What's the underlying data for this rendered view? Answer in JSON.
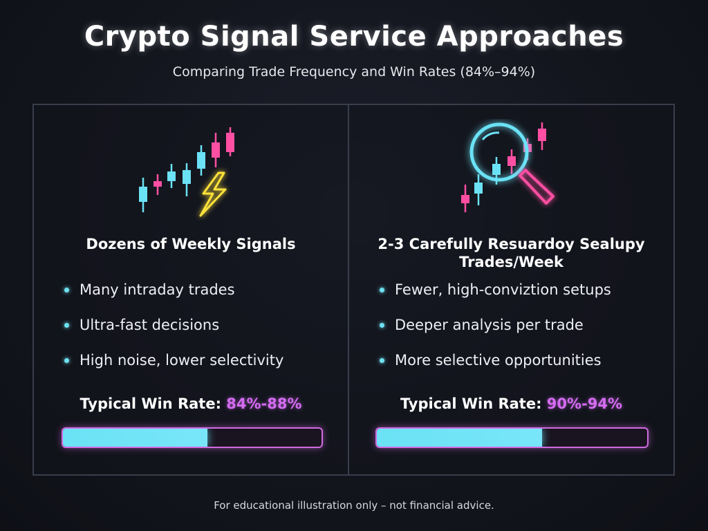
{
  "title": "Crypto Signal Service Approaches",
  "subtitle": "Comparing Trade Frequency and Win Rates (84%–94%)",
  "colors": {
    "accent_cyan": "#6be2f5",
    "accent_pink": "#ff4fa3",
    "accent_purple": "#d46cf2",
    "accent_yellow": "#ffe23a",
    "background": "#13151d"
  },
  "left": {
    "icon": "candlestick-lightning-icon",
    "heading": "Dozens of Weekly Signals",
    "bullets": [
      "Many intraday trades",
      "Ultra-fast decisions",
      "High noise, lower selectivity"
    ],
    "win_rate_label": "Typical Win Rate:",
    "win_rate_value": "84%-88%",
    "bar_fill_fraction": 0.56
  },
  "right": {
    "icon": "magnifier-candlestick-icon",
    "heading_line1": "2-3 Carefully Resuardoy Sealupy",
    "heading_line2": "Trades/Week",
    "bullets": [
      "Fewer, high-conviztion setups",
      "Deeper analysis per trade",
      "More selective opportunities"
    ],
    "win_rate_label": "Typical Win Rate:",
    "win_rate_value": "90%-94%",
    "bar_fill_fraction": 0.61
  },
  "footer": "For educational illustration only – not financial advice."
}
